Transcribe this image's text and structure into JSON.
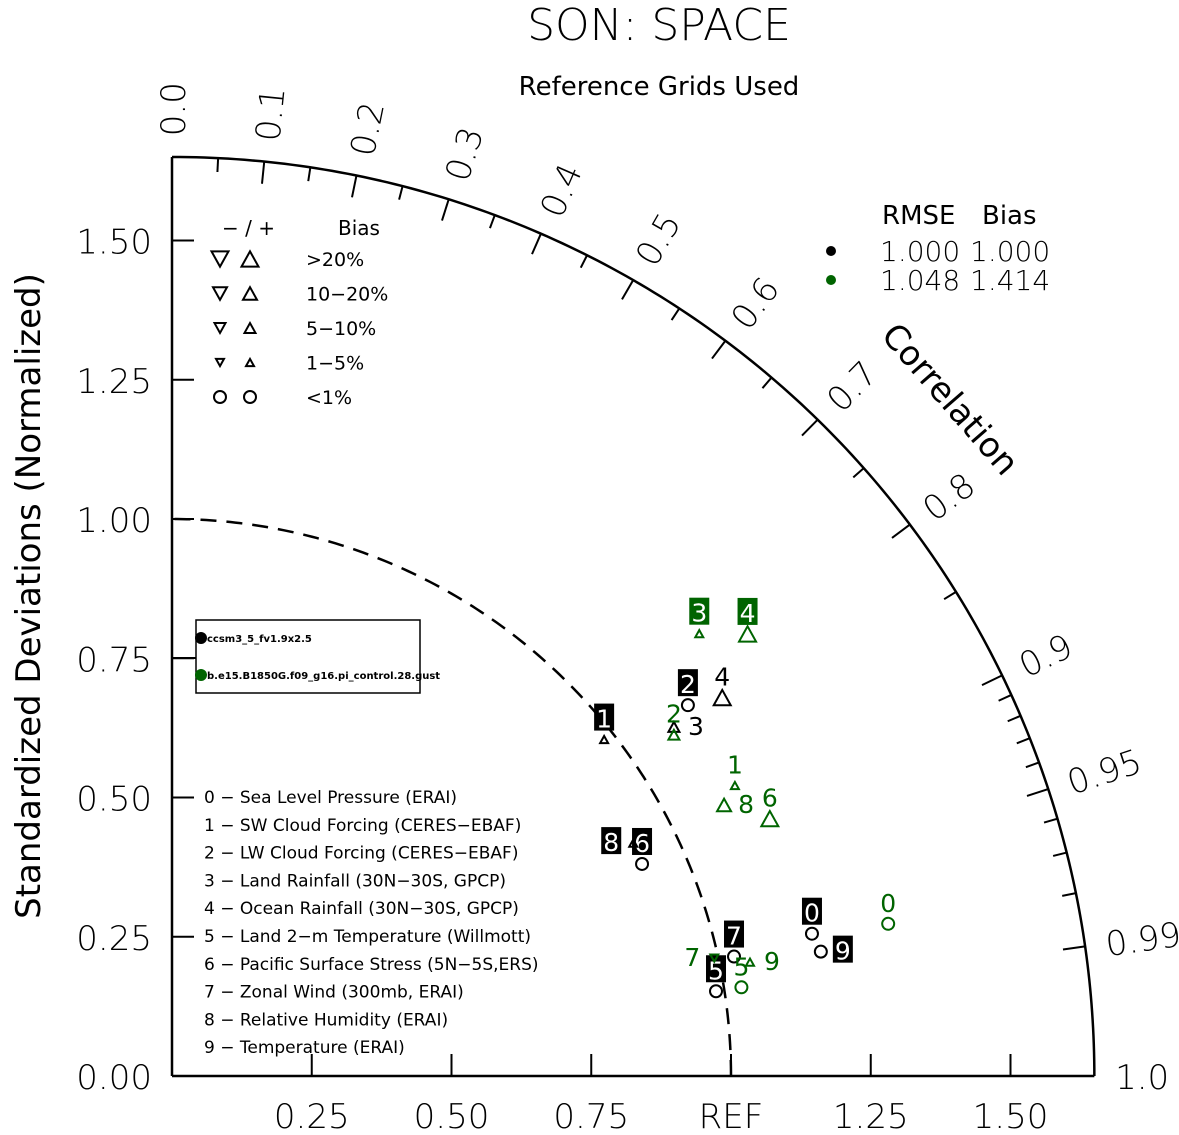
{
  "chart_data": {
    "type": "taylor",
    "title": "SON: SPACE",
    "subtitle": "Reference Grids Used",
    "ylabel": "Standardized Deviations (Normalized)",
    "angular_label": "Correlation",
    "std_range": [
      0,
      1.65
    ],
    "std_ticks": [
      "0.00",
      "0.25",
      "0.50",
      "0.75",
      "1.00",
      "1.25",
      "1.50"
    ],
    "x_ticks": [
      "0.25",
      "0.50",
      "0.75",
      "REF",
      "1.25",
      "1.50"
    ],
    "x_tick_values": [
      0.25,
      0.5,
      0.75,
      1.0,
      1.25,
      1.5
    ],
    "corr_labels": [
      "0.0",
      "0.1",
      "0.2",
      "0.3",
      "0.4",
      "0.5",
      "0.6",
      "0.7",
      "0.8",
      "0.9",
      "0.95",
      "0.99",
      "1.0"
    ],
    "corr_label_values": [
      0.0,
      0.1,
      0.2,
      0.3,
      0.4,
      0.5,
      0.6,
      0.7,
      0.8,
      0.9,
      0.95,
      0.99,
      1.0
    ],
    "reference_std": 1.0,
    "bias_legend": {
      "header_sign": "− / +",
      "header": "Bias",
      "rows": [
        ">20%",
        "10−20%",
        "5−10%",
        "1−5%",
        "<1%"
      ]
    },
    "stats_legend": {
      "header_rmse": "RMSE",
      "header_bias": "Bias",
      "rows": [
        {
          "rmse": "1.000",
          "bias": "1.000",
          "color": "#000000"
        },
        {
          "rmse": "1.048",
          "bias": "1.414",
          "color": "#006400"
        }
      ]
    },
    "variables": [
      "0 − Sea Level Pressure (ERAI)",
      "1 − SW Cloud Forcing (CERES−EBAF)",
      "2 − LW Cloud Forcing (CERES−EBAF)",
      "3 − Land Rainfall (30N−30S, GPCP)",
      "4 − Ocean Rainfall (30N−30S, GPCP)",
      "5 − Land 2−m Temperature (Willmott)",
      "6 − Pacific Surface Stress (5N−5S,ERS)",
      "7 − Zonal Wind (300mb, ERAI)",
      "8 − Relative Humidity (ERAI)",
      "9 − Temperature (ERAI)"
    ],
    "series": [
      {
        "name": "ccsm3_5_fv1.9x2.5",
        "color": "#000000",
        "points": [
          {
            "label": "0",
            "std": 1.173,
            "corr": 0.976,
            "bias": "<1%",
            "sign": "+",
            "boxed": true
          },
          {
            "label": "1",
            "std": 0.981,
            "corr": 0.788,
            "bias": "1-5%",
            "sign": "+",
            "boxed": true
          },
          {
            "label": "2",
            "std": 1.138,
            "corr": 0.811,
            "bias": "<1%",
            "sign": "+",
            "boxed": true
          },
          {
            "label": "3",
            "std": 1.095,
            "corr": 0.82,
            "bias": "5-10%",
            "sign": "+",
            "boxed": false
          },
          {
            "label": "4",
            "std": 1.196,
            "corr": 0.823,
            "bias": ">20%",
            "sign": "+",
            "boxed": false
          },
          {
            "label": "5",
            "std": 0.985,
            "corr": 0.988,
            "bias": "<1%",
            "sign": "+",
            "boxed": true
          },
          {
            "label": "6",
            "std": 0.923,
            "corr": 0.911,
            "bias": "<1%",
            "sign": "+",
            "boxed": true
          },
          {
            "label": "7",
            "std": 1.028,
            "corr": 0.978,
            "bias": "<1%",
            "sign": "+",
            "boxed": true
          },
          {
            "label": "8",
            "std": 0.925,
            "corr": 0.892,
            "bias": "1-5%",
            "sign": "+",
            "boxed": true
          },
          {
            "label": "9",
            "std": 1.182,
            "corr": 0.982,
            "bias": "<1%",
            "sign": "+",
            "boxed": true
          }
        ]
      },
      {
        "name": "b.e15.B1850G.f09_g16.pi_control.28.gust",
        "color": "#006400",
        "points": [
          {
            "label": "0",
            "std": 1.31,
            "corr": 0.978,
            "bias": "<1%",
            "sign": "+",
            "boxed": false
          },
          {
            "label": "1",
            "std": 1.134,
            "corr": 0.888,
            "bias": "1-5%",
            "sign": "+",
            "boxed": false
          },
          {
            "label": "2",
            "std": 1.087,
            "corr": 0.826,
            "bias": "5-10%",
            "sign": "+",
            "boxed": false
          },
          {
            "label": "3",
            "std": 1.233,
            "corr": 0.765,
            "bias": "1-5%",
            "sign": "+",
            "boxed": true
          },
          {
            "label": "4",
            "std": 1.3,
            "corr": 0.792,
            "bias": ">20%",
            "sign": "+",
            "boxed": true
          },
          {
            "label": "5",
            "std": 1.031,
            "corr": 0.988,
            "bias": "<1%",
            "sign": "+",
            "boxed": false
          },
          {
            "label": "6",
            "std": 1.165,
            "corr": 0.918,
            "bias": ">20%",
            "sign": "+",
            "boxed": false
          },
          {
            "label": "7",
            "std": 0.993,
            "corr": 0.977,
            "bias": "1-5%",
            "sign": "-",
            "boxed": false
          },
          {
            "label": "8",
            "std": 1.101,
            "corr": 0.897,
            "bias": "10-20%",
            "sign": "+",
            "boxed": false
          },
          {
            "label": "9",
            "std": 1.054,
            "corr": 0.981,
            "bias": "1-5%",
            "sign": "+",
            "boxed": false
          }
        ]
      }
    ]
  }
}
